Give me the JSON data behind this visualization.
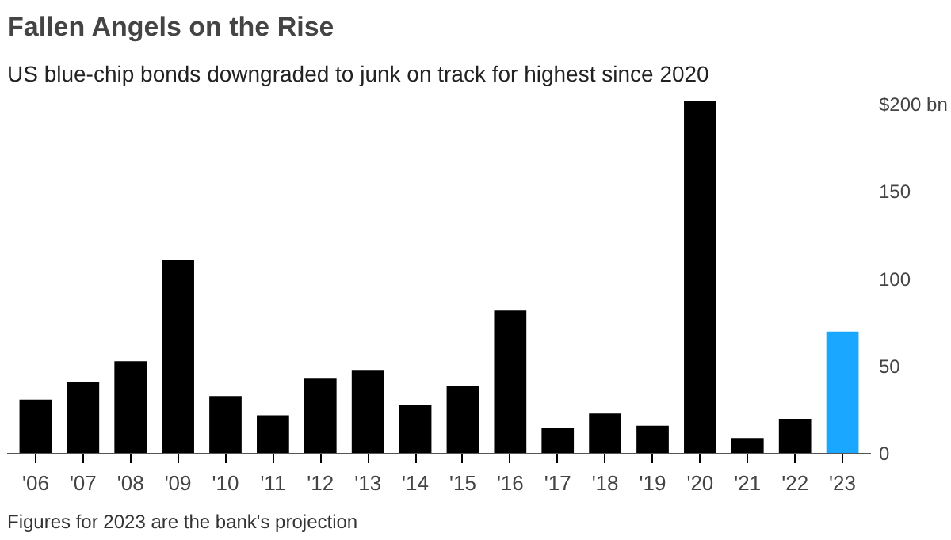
{
  "chart_data": {
    "type": "bar",
    "title": "Fallen Angels on the Rise",
    "subtitle": "US blue-chip bonds downgraded to junk on track for highest since 2020",
    "categories": [
      "'06",
      "'07",
      "'08",
      "'09",
      "'10",
      "'11",
      "'12",
      "'13",
      "'14",
      "'15",
      "'16",
      "'17",
      "'18",
      "'19",
      "'20",
      "'21",
      "'22",
      "'23"
    ],
    "values": [
      31,
      41,
      53,
      111,
      33,
      22,
      43,
      48,
      28,
      39,
      82,
      15,
      23,
      16,
      202,
      9,
      20,
      70
    ],
    "colors": [
      "#000000",
      "#000000",
      "#000000",
      "#000000",
      "#000000",
      "#000000",
      "#000000",
      "#000000",
      "#000000",
      "#000000",
      "#000000",
      "#000000",
      "#000000",
      "#000000",
      "#000000",
      "#000000",
      "#000000",
      "#1aa7ff"
    ],
    "ylim": [
      0,
      206
    ],
    "yticks": [
      0,
      50,
      100,
      150,
      {
        "value": 200,
        "label": "$200 bn"
      }
    ],
    "grid": false,
    "annotations": [
      "Figures for 2023 are the bank's projection"
    ]
  }
}
